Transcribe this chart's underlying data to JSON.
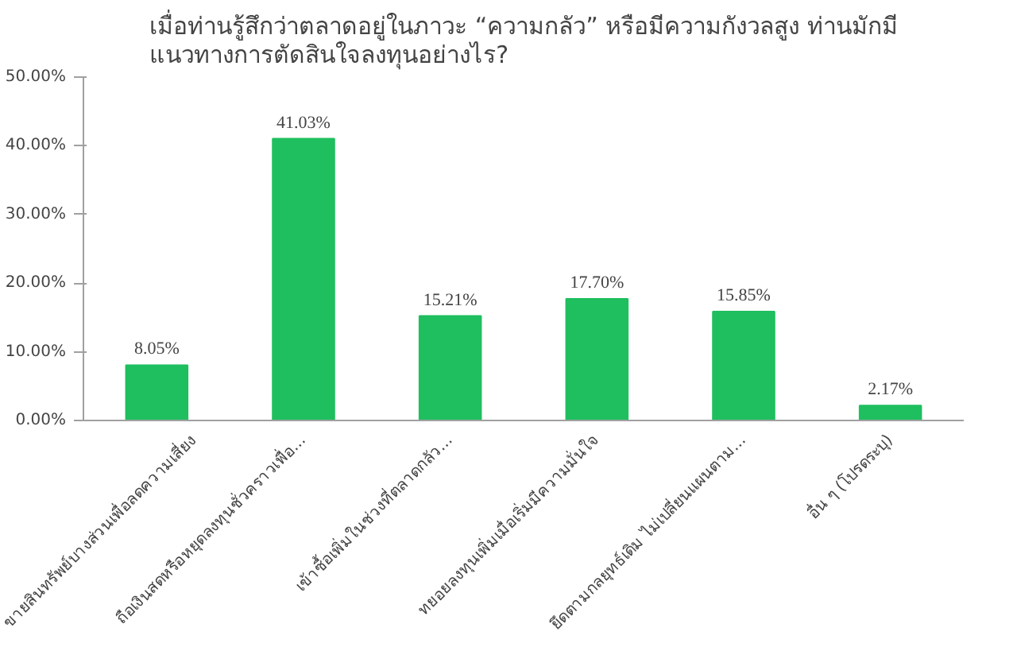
{
  "chart_data": {
    "type": "bar",
    "title": "เมื่อท่านรู้สึกว่าตลาดอยู่ในภาวะ “ความกลัว” หรือมีความกังวลสูง ท่านมักมี\nแนวทางการตัดสินใจลงทุนอย่างไร?",
    "categories": [
      "ขายสินทรัพย์บางส่วนเพื่อลดความเสี่ยง",
      "ถือเงินสดหรือหยุดลงทุนชั่วคราวเพื่อ...",
      "เข้าซื้อเพิ่มในช่วงที่ตลาดกลัว...",
      "ทยอยลงทุนเพิ่มเมื่อเริ่มมีความมั่นใจ",
      "ยึดตามกลยุทธ์เดิม ไม่เปลี่ยนแผนตาม...",
      "อื่น ๆ (โปรดระบุ)"
    ],
    "values": [
      8.05,
      41.03,
      15.21,
      17.7,
      15.85,
      2.17
    ],
    "value_labels": [
      "8.05%",
      "41.03%",
      "15.21%",
      "17.70%",
      "15.85%",
      "2.17%"
    ],
    "color": "#1fbf5f",
    "ylim": [
      0,
      50
    ],
    "yticks": [
      {
        "value": 0,
        "label": "0.00%"
      },
      {
        "value": 10,
        "label": "10.00%"
      },
      {
        "value": 20,
        "label": "20.00%"
      },
      {
        "value": 30,
        "label": "30.00%"
      },
      {
        "value": 40,
        "label": "40.00%"
      },
      {
        "value": 50,
        "label": "50.00%"
      }
    ],
    "grid": false
  }
}
